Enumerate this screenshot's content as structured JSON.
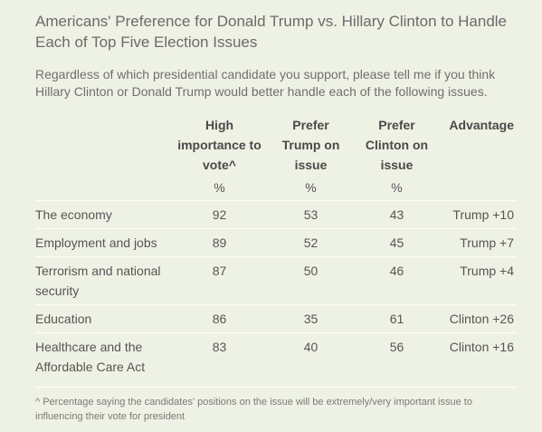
{
  "title": "Americans' Preference for Donald Trump vs. Hillary Clinton to Handle Each of Top Five Election Issues",
  "subtitle": "Regardless of which presidential candidate you support, please tell me if you think Hillary Clinton or Donald Trump would better handle each of the following issues.",
  "columns": {
    "importance": "High importance to vote^",
    "trump": "Prefer Trump on issue",
    "clinton": "Prefer Clinton on issue",
    "advantage": "Advantage"
  },
  "percent_row": {
    "importance": "%",
    "trump": "%",
    "clinton": "%"
  },
  "rows": [
    {
      "issue": "The economy",
      "importance": "92",
      "trump": "53",
      "clinton": "43",
      "advantage": "Trump +10"
    },
    {
      "issue": "Employment and jobs",
      "importance": "89",
      "trump": "52",
      "clinton": "45",
      "advantage": "Trump +7"
    },
    {
      "issue": "Terrorism and national security",
      "importance": "87",
      "trump": "50",
      "clinton": "46",
      "advantage": "Trump +4"
    },
    {
      "issue": "Education",
      "importance": "86",
      "trump": "35",
      "clinton": "61",
      "advantage": "Clinton +26"
    },
    {
      "issue": "Healthcare and the Affordable Care Act",
      "importance": "83",
      "trump": "40",
      "clinton": "56",
      "advantage": "Clinton +16"
    }
  ],
  "footnote": "^ Percentage saying the candidates' positions on the issue will be extremely/very important issue to influencing their vote for president"
}
